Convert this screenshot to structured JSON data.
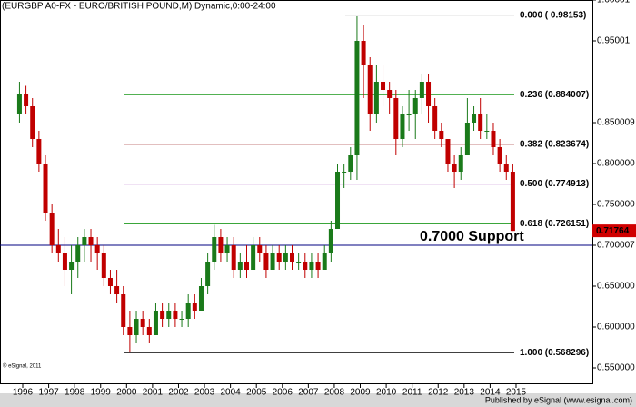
{
  "chart_data": {
    "type": "candlestick",
    "title": "(EURGBP A0-FX - EURO/BRITISH POUND,M) Dynamic,0:00-24:00",
    "watermark": "© eSignal, 2011",
    "footer": "Published by eSignal (www.esignal.com)",
    "up_color": "#1a7a1a",
    "down_color": "#c00000",
    "xlim": [
      1995.125,
      2017.94
    ],
    "xticks": [
      1996,
      1997,
      1998,
      1999,
      2000,
      2001,
      2002,
      2003,
      2004,
      2005,
      2006,
      2007,
      2008,
      2009,
      2010,
      2011,
      2012,
      2013,
      2014,
      2015
    ],
    "ylim": [
      0.53,
      1.0
    ],
    "yticks": [
      1.00001,
      0.95001,
      0.850009,
      {
        "value": 0.8,
        "label": "0.800000"
      },
      {
        "value": 0.75,
        "label": "0.750000"
      },
      0.700007,
      {
        "value": 0.65,
        "label": "0.650000"
      },
      {
        "value": 0.6,
        "label": "0.600000"
      },
      {
        "value": 0.55,
        "label": "0.550000"
      }
    ],
    "x": [
      1995.875,
      1996.125,
      1996.375,
      1996.625,
      1996.875,
      1997.125,
      1997.375,
      1997.625,
      1997.875,
      1998.125,
      1998.375,
      1998.625,
      1998.875,
      1999.125,
      1999.375,
      1999.625,
      1999.875,
      2000.125,
      2000.375,
      2000.625,
      2000.875,
      2001.125,
      2001.375,
      2001.625,
      2001.875,
      2002.125,
      2002.375,
      2002.625,
      2002.875,
      2003.125,
      2003.375,
      2003.625,
      2003.875,
      2004.125,
      2004.375,
      2004.625,
      2004.875,
      2005.125,
      2005.375,
      2005.625,
      2005.875,
      2006.125,
      2006.375,
      2006.625,
      2006.875,
      2007.125,
      2007.375,
      2007.625,
      2007.875,
      2008.125,
      2008.375,
      2008.625,
      2008.875,
      2009.125,
      2009.375,
      2009.625,
      2009.875,
      2010.125,
      2010.375,
      2010.625,
      2010.875,
      2011.125,
      2011.375,
      2011.625,
      2011.875,
      2012.125,
      2012.375,
      2012.625,
      2012.875,
      2013.125,
      2013.375,
      2013.625,
      2013.875,
      2014.125,
      2014.375,
      2014.625,
      2014.875
    ],
    "open": [
      0.86,
      0.885,
      0.87,
      0.83,
      0.8,
      0.74,
      0.7,
      0.69,
      0.67,
      0.68,
      0.7,
      0.71,
      0.7,
      0.69,
      0.66,
      0.65,
      0.64,
      0.6,
      0.59,
      0.61,
      0.6,
      0.59,
      0.62,
      0.61,
      0.62,
      0.61,
      0.61,
      0.63,
      0.62,
      0.65,
      0.68,
      0.71,
      0.69,
      0.7,
      0.67,
      0.68,
      0.67,
      0.7,
      0.69,
      0.67,
      0.69,
      0.68,
      0.69,
      0.68,
      0.68,
      0.67,
      0.68,
      0.67,
      0.69,
      0.72,
      0.79,
      0.79,
      0.81,
      0.95,
      0.92,
      0.86,
      0.9,
      0.89,
      0.88,
      0.83,
      0.86,
      0.86,
      0.88,
      0.9,
      0.87,
      0.84,
      0.83,
      0.8,
      0.79,
      0.81,
      0.85,
      0.86,
      0.84,
      0.84,
      0.82,
      0.8,
      0.79
    ],
    "high": [
      0.9,
      0.895,
      0.88,
      0.84,
      0.81,
      0.75,
      0.72,
      0.71,
      0.7,
      0.71,
      0.72,
      0.72,
      0.71,
      0.7,
      0.67,
      0.67,
      0.65,
      0.62,
      0.62,
      0.62,
      0.61,
      0.63,
      0.63,
      0.63,
      0.63,
      0.62,
      0.64,
      0.64,
      0.66,
      0.69,
      0.725,
      0.72,
      0.71,
      0.71,
      0.69,
      0.7,
      0.71,
      0.71,
      0.7,
      0.7,
      0.7,
      0.7,
      0.7,
      0.69,
      0.69,
      0.69,
      0.69,
      0.7,
      0.73,
      0.8,
      0.8,
      0.82,
      0.98,
      0.97,
      0.93,
      0.92,
      0.92,
      0.9,
      0.89,
      0.87,
      0.89,
      0.89,
      0.91,
      0.91,
      0.88,
      0.85,
      0.83,
      0.81,
      0.82,
      0.88,
      0.87,
      0.88,
      0.86,
      0.85,
      0.83,
      0.81,
      0.8
    ],
    "low": [
      0.85,
      0.86,
      0.82,
      0.79,
      0.73,
      0.69,
      0.68,
      0.65,
      0.64,
      0.66,
      0.68,
      0.68,
      0.67,
      0.65,
      0.64,
      0.63,
      0.59,
      0.569,
      0.58,
      0.59,
      0.58,
      0.59,
      0.6,
      0.6,
      0.6,
      0.6,
      0.6,
      0.61,
      0.62,
      0.64,
      0.67,
      0.68,
      0.68,
      0.66,
      0.66,
      0.66,
      0.67,
      0.68,
      0.66,
      0.67,
      0.67,
      0.67,
      0.67,
      0.67,
      0.66,
      0.66,
      0.66,
      0.67,
      0.68,
      0.72,
      0.77,
      0.78,
      0.78,
      0.88,
      0.84,
      0.85,
      0.87,
      0.86,
      0.81,
      0.82,
      0.84,
      0.83,
      0.86,
      0.85,
      0.83,
      0.82,
      0.79,
      0.77,
      0.78,
      0.81,
      0.84,
      0.83,
      0.83,
      0.81,
      0.79,
      0.78,
      0.7176
    ],
    "close": [
      0.885,
      0.87,
      0.83,
      0.8,
      0.74,
      0.7,
      0.69,
      0.67,
      0.68,
      0.7,
      0.71,
      0.7,
      0.69,
      0.66,
      0.65,
      0.64,
      0.6,
      0.59,
      0.61,
      0.6,
      0.59,
      0.62,
      0.61,
      0.62,
      0.61,
      0.61,
      0.63,
      0.62,
      0.65,
      0.68,
      0.71,
      0.69,
      0.7,
      0.67,
      0.68,
      0.67,
      0.7,
      0.69,
      0.67,
      0.69,
      0.68,
      0.69,
      0.68,
      0.68,
      0.67,
      0.68,
      0.67,
      0.69,
      0.72,
      0.79,
      0.79,
      0.81,
      0.95,
      0.92,
      0.86,
      0.9,
      0.89,
      0.88,
      0.83,
      0.86,
      0.86,
      0.88,
      0.9,
      0.87,
      0.84,
      0.83,
      0.8,
      0.79,
      0.81,
      0.85,
      0.86,
      0.84,
      0.84,
      0.82,
      0.8,
      0.79,
      0.7176
    ],
    "levels": [
      {
        "label": "0.000 ( 0.98153)",
        "value": 0.98153,
        "color": "#808080"
      },
      {
        "label": "0.236 (0.884007)",
        "value": 0.884007,
        "color": "#3aa63a"
      },
      {
        "label": "0.382 (0.823674)",
        "value": 0.823674,
        "color": "#8b0000"
      },
      {
        "label": "0.500 (0.774913)",
        "value": 0.774913,
        "color": "#8b1fa8"
      },
      {
        "label": "0.618 (0.726151)",
        "value": 0.726151,
        "color": "#3aa63a"
      },
      {
        "label": "1.000 (0.568296)",
        "value": 0.568296,
        "color": "#404040"
      }
    ],
    "support": {
      "label": "0.7000 Support",
      "value": 0.7,
      "color": "#000080"
    },
    "last_price": 0.71764
  }
}
